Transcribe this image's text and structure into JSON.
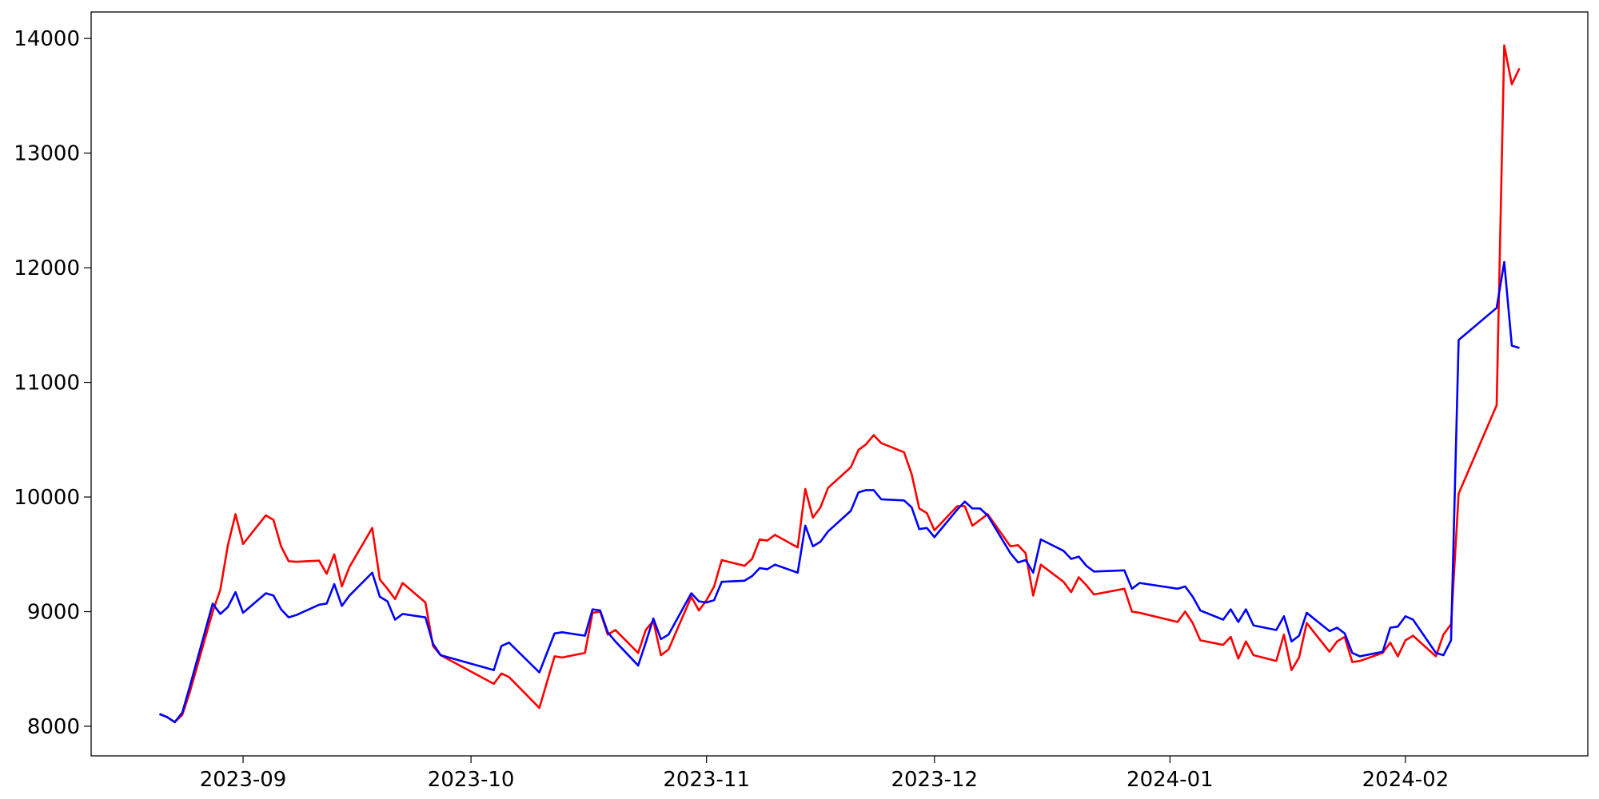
{
  "chart_data": {
    "type": "line",
    "x": [
      "2023-08-21",
      "2023-08-22",
      "2023-08-23",
      "2023-08-24",
      "2023-08-25",
      "2023-08-28",
      "2023-08-29",
      "2023-08-30",
      "2023-08-31",
      "2023-09-01",
      "2023-09-04",
      "2023-09-05",
      "2023-09-06",
      "2023-09-07",
      "2023-09-08",
      "2023-09-11",
      "2023-09-12",
      "2023-09-13",
      "2023-09-14",
      "2023-09-15",
      "2023-09-18",
      "2023-09-19",
      "2023-09-20",
      "2023-09-21",
      "2023-09-22",
      "2023-09-25",
      "2023-09-26",
      "2023-09-27",
      "2023-10-04",
      "2023-10-05",
      "2023-10-06",
      "2023-10-10",
      "2023-10-12",
      "2023-10-13",
      "2023-10-16",
      "2023-10-17",
      "2023-10-18",
      "2023-10-19",
      "2023-10-20",
      "2023-10-23",
      "2023-10-24",
      "2023-10-25",
      "2023-10-26",
      "2023-10-27",
      "2023-10-30",
      "2023-10-31",
      "2023-11-01",
      "2023-11-02",
      "2023-11-03",
      "2023-11-06",
      "2023-11-07",
      "2023-11-08",
      "2023-11-09",
      "2023-11-10",
      "2023-11-13",
      "2023-11-14",
      "2023-11-15",
      "2023-11-16",
      "2023-11-17",
      "2023-11-20",
      "2023-11-21",
      "2023-11-22",
      "2023-11-23",
      "2023-11-24",
      "2023-11-27",
      "2023-11-28",
      "2023-11-29",
      "2023-11-30",
      "2023-12-01",
      "2023-12-04",
      "2023-12-05",
      "2023-12-06",
      "2023-12-07",
      "2023-12-08",
      "2023-12-11",
      "2023-12-12",
      "2023-12-13",
      "2023-12-14",
      "2023-12-15",
      "2023-12-18",
      "2023-12-19",
      "2023-12-20",
      "2023-12-21",
      "2023-12-22",
      "2023-12-26",
      "2023-12-27",
      "2023-12-28",
      "2024-01-02",
      "2024-01-03",
      "2024-01-04",
      "2024-01-05",
      "2024-01-08",
      "2024-01-09",
      "2024-01-10",
      "2024-01-11",
      "2024-01-12",
      "2024-01-15",
      "2024-01-16",
      "2024-01-17",
      "2024-01-18",
      "2024-01-19",
      "2024-01-22",
      "2024-01-23",
      "2024-01-24",
      "2024-01-25",
      "2024-01-26",
      "2024-01-29",
      "2024-01-30",
      "2024-01-31",
      "2024-02-01",
      "2024-02-02",
      "2024-02-05",
      "2024-02-06",
      "2024-02-07",
      "2024-02-08",
      "2024-02-13",
      "2024-02-14",
      "2024-02-15",
      "2024-02-16"
    ],
    "series": [
      {
        "color": "#ff0000",
        "values": [
          8107,
          8080,
          8036,
          8100,
          8300,
          9000,
          9190,
          9580,
          9850,
          9590,
          9840,
          9800,
          9570,
          9440,
          9435,
          9445,
          9330,
          9500,
          9220,
          9390,
          9730,
          9280,
          9200,
          9110,
          9250,
          9080,
          8700,
          8620,
          8370,
          8460,
          8430,
          8160,
          8610,
          8600,
          8640,
          8990,
          9000,
          8800,
          8840,
          8640,
          8840,
          8920,
          8620,
          8670,
          9130,
          9010,
          9100,
          9220,
          9450,
          9400,
          9460,
          9630,
          9620,
          9670,
          9560,
          10070,
          9820,
          9910,
          10080,
          10260,
          10410,
          10460,
          10540,
          10470,
          10390,
          10200,
          9900,
          9860,
          9710,
          9920,
          9920,
          9750,
          9800,
          9850,
          9570,
          9580,
          9510,
          9140,
          9410,
          9260,
          9170,
          9300,
          9230,
          9150,
          9200,
          9000,
          8990,
          8910,
          9000,
          8900,
          8750,
          8710,
          8780,
          8590,
          8740,
          8620,
          8570,
          8800,
          8490,
          8600,
          8900,
          8650,
          8740,
          8780,
          8560,
          8570,
          8640,
          8730,
          8610,
          8750,
          8790,
          8610,
          8800,
          8890,
          10030,
          10800,
          13940,
          13600,
          13740
        ]
      },
      {
        "color": "#0000ff",
        "values": [
          8107,
          8080,
          8036,
          8120,
          8350,
          9070,
          8980,
          9040,
          9170,
          8990,
          9160,
          9140,
          9020,
          8950,
          8970,
          9060,
          9070,
          9240,
          9050,
          9140,
          9340,
          9130,
          9090,
          8930,
          8980,
          8950,
          8720,
          8620,
          8490,
          8700,
          8730,
          8470,
          8810,
          8820,
          8790,
          9020,
          9010,
          8820,
          8740,
          8530,
          8730,
          8940,
          8760,
          8800,
          9160,
          9090,
          9080,
          9100,
          9260,
          9270,
          9310,
          9380,
          9370,
          9410,
          9340,
          9750,
          9570,
          9610,
          9700,
          9880,
          10040,
          10060,
          10060,
          9980,
          9970,
          9910,
          9720,
          9730,
          9650,
          9890,
          9960,
          9900,
          9900,
          9840,
          9510,
          9430,
          9450,
          9340,
          9630,
          9530,
          9460,
          9480,
          9400,
          9350,
          9360,
          9200,
          9250,
          9200,
          9220,
          9130,
          9010,
          8930,
          9020,
          8910,
          9020,
          8880,
          8840,
          8960,
          8740,
          8790,
          8990,
          8830,
          8860,
          8810,
          8640,
          8610,
          8650,
          8860,
          8870,
          8960,
          8930,
          8640,
          8620,
          8750,
          11370,
          11650,
          12050,
          11320,
          11300
        ]
      }
    ],
    "xlim": [
      "2023-08-12",
      "2024-02-25"
    ],
    "xticks": [
      {
        "value": "2023-09-01",
        "label": "2023-09"
      },
      {
        "value": "2023-10-01",
        "label": "2023-10"
      },
      {
        "value": "2023-11-01",
        "label": "2023-11"
      },
      {
        "value": "2023-12-01",
        "label": "2023-12"
      },
      {
        "value": "2024-01-01",
        "label": "2024-01"
      },
      {
        "value": "2024-02-01",
        "label": "2024-02"
      }
    ],
    "ylim": [
      7742,
      14231
    ],
    "yticks": [
      8000,
      9000,
      10000,
      11000,
      12000,
      13000,
      14000
    ]
  }
}
